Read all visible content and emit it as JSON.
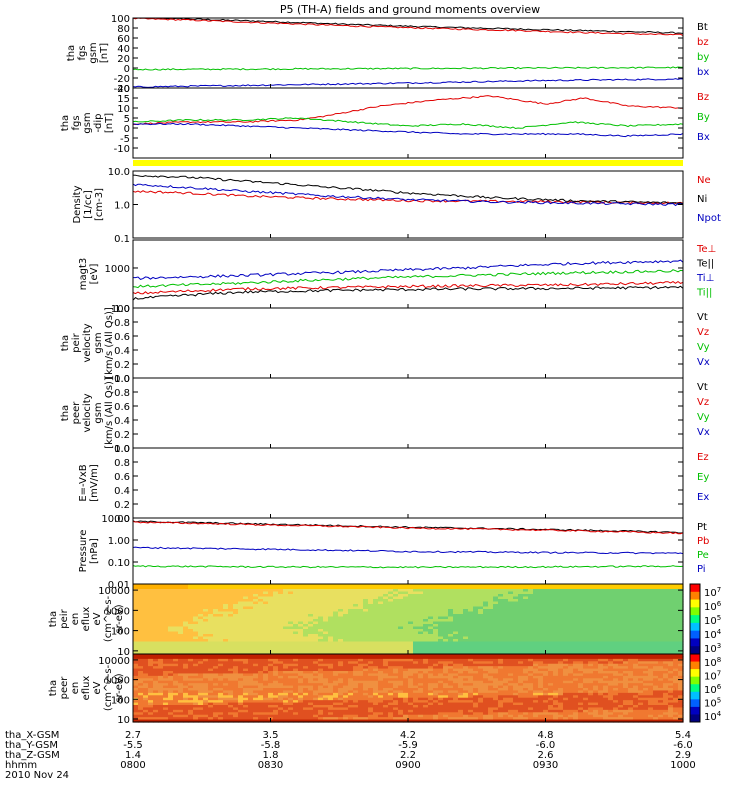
{
  "title": "P5 (TH-A) fields and ground moments overview",
  "colors": {
    "black": "#000000",
    "red": "#e00000",
    "green": "#00c000",
    "blue": "#0000c0",
    "yellow": "#ffff00",
    "frame": "#000000"
  },
  "x_axis": {
    "rows": [
      {
        "label": "tha_X-GSM",
        "values": [
          "2.7",
          "3.5",
          "4.2",
          "4.8",
          "5.4"
        ]
      },
      {
        "label": "tha_Y-GSM",
        "values": [
          "-5.5",
          "-5.8",
          "-5.9",
          "-6.0",
          "-6.0"
        ]
      },
      {
        "label": "tha_Z-GSM",
        "values": [
          "1.4",
          "1.8",
          "2.2",
          "2.6",
          "2.9"
        ]
      },
      {
        "label": "hhmm",
        "values": [
          "0800",
          "0830",
          "0900",
          "0930",
          "1000"
        ]
      }
    ],
    "date": "2010 Nov 24",
    "time_range": [
      "0800",
      "1000"
    ]
  },
  "chart_data": [
    {
      "type": "line",
      "ylabel": "tha\nfgs\ngsm\n[nT]",
      "ylim": [
        -40,
        100
      ],
      "yticks": [
        "100",
        "80",
        "60",
        "40",
        "20",
        "0",
        "-20",
        "-40"
      ],
      "series": [
        {
          "name": "Bt",
          "color": "black",
          "x": [
            0,
            0.1,
            0.25,
            0.4,
            0.55,
            0.7,
            0.85,
            1
          ],
          "values": [
            100,
            98,
            93,
            87,
            82,
            78,
            74,
            70
          ]
        },
        {
          "name": "bz",
          "color": "red",
          "x": [
            0,
            0.1,
            0.25,
            0.4,
            0.55,
            0.7,
            0.85,
            1
          ],
          "values": [
            99,
            96,
            90,
            84,
            79,
            75,
            70,
            66
          ]
        },
        {
          "name": "by",
          "color": "green",
          "x": [
            0,
            0.25,
            0.5,
            0.75,
            1
          ],
          "values": [
            -3,
            -2,
            -1,
            0,
            1
          ]
        },
        {
          "name": "bx",
          "color": "blue",
          "x": [
            0,
            0.25,
            0.5,
            0.75,
            1
          ],
          "values": [
            -38,
            -34,
            -30,
            -25,
            -22
          ]
        }
      ]
    },
    {
      "type": "line",
      "ylabel": "tha\nfgs\ngsm\n-dip\n[nT]",
      "ylim": [
        -15,
        20
      ],
      "yticks": [
        "20",
        "15",
        "10",
        "5",
        "0",
        "-5",
        "-10"
      ],
      "series": [
        {
          "name": "Bz",
          "color": "red",
          "x": [
            0,
            0.1,
            0.2,
            0.3,
            0.35,
            0.45,
            0.55,
            0.65,
            0.75,
            0.82,
            0.9,
            1
          ],
          "values": [
            2,
            3,
            3,
            4,
            6,
            11,
            14,
            16,
            12,
            15,
            11,
            10
          ]
        },
        {
          "name": "By",
          "color": "green",
          "x": [
            0,
            0.1,
            0.2,
            0.3,
            0.4,
            0.5,
            0.6,
            0.7,
            0.8,
            0.9,
            1
          ],
          "values": [
            3,
            4,
            4,
            5,
            3,
            1,
            2,
            0,
            3,
            1,
            2
          ]
        },
        {
          "name": "Bx",
          "color": "blue",
          "x": [
            0,
            0.1,
            0.2,
            0.3,
            0.4,
            0.5,
            0.6,
            0.7,
            0.8,
            0.9,
            1
          ],
          "values": [
            2,
            2,
            1,
            0,
            -1,
            -2,
            -3,
            -3,
            -3,
            -4,
            -3
          ]
        }
      ]
    },
    {
      "type": "line",
      "ylabel": "Density\n[1/cc]\n[cm-3]",
      "scale": "log",
      "ylim": [
        0.1,
        10
      ],
      "yticks": [
        "10.0",
        "1.0",
        "0.1"
      ],
      "series": [
        {
          "name": "Ne",
          "color": "red",
          "x": [
            0,
            0.1,
            0.2,
            0.35,
            0.5,
            0.65,
            0.8,
            1
          ],
          "values": [
            2.5,
            2.2,
            1.8,
            1.5,
            1.3,
            1.25,
            1.2,
            1.1
          ]
        },
        {
          "name": "Ni",
          "color": "black",
          "x": [
            0,
            0.1,
            0.2,
            0.35,
            0.5,
            0.65,
            0.8,
            1
          ],
          "values": [
            7.5,
            6.5,
            5,
            3.3,
            2.2,
            1.6,
            1.3,
            1.1
          ]
        },
        {
          "name": "Npot",
          "color": "blue",
          "x": [
            0,
            0.1,
            0.2,
            0.35,
            0.5,
            0.65,
            0.8,
            1
          ],
          "values": [
            4,
            3.2,
            2.5,
            1.8,
            1.4,
            1.2,
            1.1,
            1.0
          ]
        }
      ]
    },
    {
      "type": "line",
      "ylabel": "magt3\n[eV]",
      "scale": "log",
      "ylim": [
        100,
        5000
      ],
      "yticks": [
        "1000",
        "100"
      ],
      "series": [
        {
          "name": "Te⊥",
          "color": "red",
          "x": [
            0,
            0.2,
            0.4,
            0.6,
            0.8,
            1
          ],
          "values": [
            230,
            300,
            330,
            360,
            380,
            430
          ]
        },
        {
          "name": "Te||",
          "color": "black",
          "x": [
            0,
            0.2,
            0.4,
            0.6,
            0.8,
            1
          ],
          "values": [
            170,
            250,
            280,
            300,
            310,
            330
          ]
        },
        {
          "name": "Ti⊥",
          "color": "blue",
          "x": [
            0,
            0.2,
            0.4,
            0.6,
            0.8,
            1
          ],
          "values": [
            550,
            650,
            800,
            1000,
            1300,
            1500
          ]
        },
        {
          "name": "Ti||",
          "color": "green",
          "x": [
            0,
            0.2,
            0.4,
            0.6,
            0.8,
            1
          ],
          "values": [
            340,
            420,
            540,
            650,
            760,
            850
          ]
        }
      ]
    },
    {
      "type": "line",
      "ylabel": "tha\npeir\nvelocity\ngsm\n[km/s (All Qs)]",
      "ylim": [
        0,
        1
      ],
      "yticks": [
        "1.0",
        "0.8",
        "0.6",
        "0.4",
        "0.2",
        "0.0"
      ],
      "series": [
        {
          "name": "Vt",
          "color": "black",
          "values": []
        },
        {
          "name": "Vz",
          "color": "red",
          "values": []
        },
        {
          "name": "Vy",
          "color": "green",
          "values": []
        },
        {
          "name": "Vx",
          "color": "blue",
          "values": []
        }
      ]
    },
    {
      "type": "line",
      "ylabel": "tha\npeer\nvelocity\ngsm\n[km/s (All Qs)]",
      "ylim": [
        0,
        1
      ],
      "yticks": [
        "1.0",
        "0.8",
        "0.6",
        "0.4",
        "0.2",
        "0.0"
      ],
      "series": [
        {
          "name": "Vt",
          "color": "black",
          "values": []
        },
        {
          "name": "Vz",
          "color": "red",
          "values": []
        },
        {
          "name": "Vy",
          "color": "green",
          "values": []
        },
        {
          "name": "Vx",
          "color": "blue",
          "values": []
        }
      ]
    },
    {
      "type": "line",
      "ylabel": "E=-VxB\n[mV/m]",
      "ylim": [
        0,
        1
      ],
      "yticks": [
        "1.0",
        "0.8",
        "0.6",
        "0.4",
        "0.2",
        "0.0"
      ],
      "series": [
        {
          "name": "Ez",
          "color": "red",
          "values": []
        },
        {
          "name": "Ey",
          "color": "green",
          "values": []
        },
        {
          "name": "Ex",
          "color": "blue",
          "values": []
        }
      ]
    },
    {
      "type": "line",
      "ylabel": "Pressure\n[nPa]",
      "scale": "log",
      "ylim": [
        0.01,
        10
      ],
      "yticks": [
        "10.00",
        "1.00",
        "0.10",
        "0.01"
      ],
      "series": [
        {
          "name": "Pt",
          "color": "black",
          "x": [
            0,
            0.25,
            0.5,
            0.75,
            1
          ],
          "values": [
            7,
            5.2,
            3.8,
            3,
            2.2
          ]
        },
        {
          "name": "Pb",
          "color": "red",
          "x": [
            0,
            0.25,
            0.5,
            0.75,
            1
          ],
          "values": [
            6.5,
            4.8,
            3.5,
            2.8,
            2
          ]
        },
        {
          "name": "Pe",
          "color": "green",
          "x": [
            0,
            0.25,
            0.5,
            0.75,
            1
          ],
          "values": [
            0.065,
            0.06,
            0.058,
            0.06,
            0.065
          ]
        },
        {
          "name": "Pi",
          "color": "blue",
          "x": [
            0,
            0.25,
            0.5,
            0.75,
            1
          ],
          "values": [
            0.45,
            0.38,
            0.3,
            0.27,
            0.25
          ]
        }
      ]
    },
    {
      "type": "heatmap",
      "ylabel": "tha\npeir\nen\neflux\neV\n(cm^2-s-\nsr-eV)",
      "scale": "log",
      "ylim": [
        7,
        20000
      ],
      "yticks": [
        "10000",
        "1000",
        "100",
        "10"
      ],
      "colorbar_ticks": [
        "10^7",
        "10^6",
        "10^5",
        "10^4",
        "10^3"
      ],
      "description": "yellow-orange at left fading to green at lower right"
    },
    {
      "type": "heatmap",
      "ylabel": "tha\npeer\nen\neflux\neV\n(cm^2-s-\nsr-eV)",
      "scale": "log",
      "ylim": [
        7,
        20000
      ],
      "yticks": [
        "10000",
        "1000",
        "100",
        "10"
      ],
      "colorbar_ticks": [
        "10^8",
        "10^7",
        "10^6",
        "10^5",
        "10^4"
      ],
      "description": "mostly orange-red throughout"
    }
  ]
}
